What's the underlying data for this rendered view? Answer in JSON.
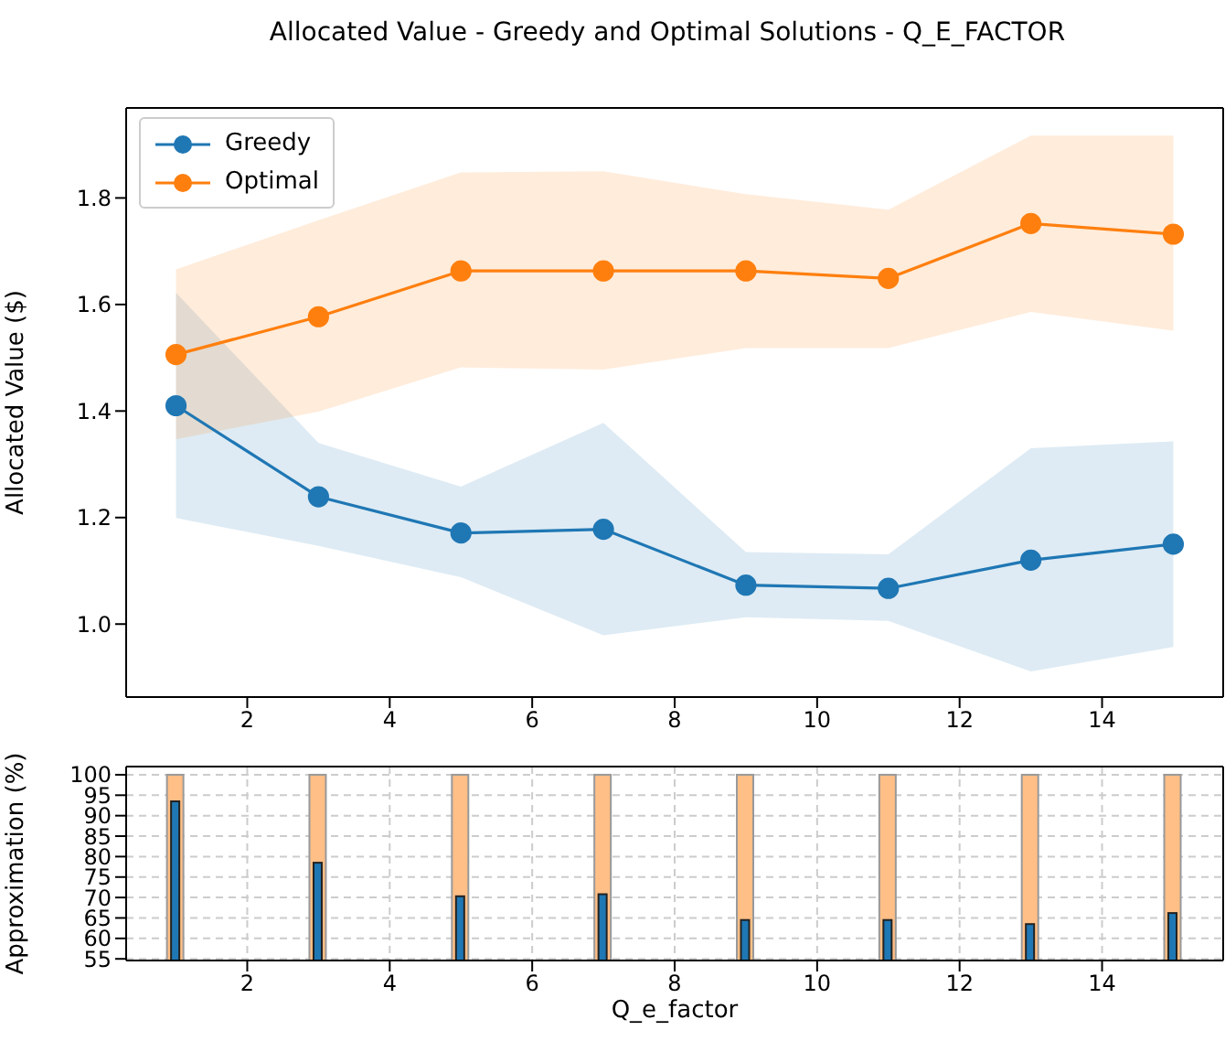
{
  "chart_data": [
    {
      "type": "line",
      "title": "Allocated Value - Greedy and Optimal Solutions - Q_E_FACTOR",
      "ylabel": "Allocated Value ($)",
      "x": [
        1,
        3,
        5,
        7,
        9,
        11,
        13,
        15
      ],
      "series": [
        {
          "name": "Greedy",
          "color": "#1f77b4",
          "values": [
            1.41,
            1.239,
            1.171,
            1.178,
            1.073,
            1.067,
            1.12,
            1.15
          ],
          "lower": [
            1.199,
            1.147,
            1.088,
            0.979,
            1.013,
            1.006,
            0.911,
            0.957
          ],
          "upper": [
            1.622,
            1.34,
            1.258,
            1.378,
            1.135,
            1.131,
            1.33,
            1.343
          ]
        },
        {
          "name": "Optimal",
          "color": "#ff7f0e",
          "values": [
            1.506,
            1.577,
            1.663,
            1.663,
            1.663,
            1.649,
            1.752,
            1.732
          ],
          "lower": [
            1.347,
            1.399,
            1.482,
            1.478,
            1.518,
            1.518,
            1.586,
            1.551
          ],
          "upper": [
            1.666,
            1.758,
            1.848,
            1.85,
            1.807,
            1.778,
            1.917,
            1.917
          ]
        }
      ],
      "xlim": [
        0.3,
        15.7
      ],
      "xticks": [
        2,
        4,
        6,
        8,
        10,
        12,
        14
      ],
      "ylim": [
        0.863,
        1.969
      ],
      "yticks": [
        {
          "value": 1.0,
          "label": "1.0"
        },
        {
          "value": 1.2,
          "label": "1.2"
        },
        {
          "value": 1.4,
          "label": "1.4"
        },
        {
          "value": 1.6,
          "label": "1.6"
        },
        {
          "value": 1.8,
          "label": "1.8"
        }
      ],
      "legend": "top left",
      "marker": "circle",
      "grid": false
    },
    {
      "type": "bar",
      "xlabel": "Q_e_factor",
      "ylabel": "Approximation (%)",
      "x": [
        1,
        3,
        5,
        7,
        9,
        11,
        13,
        15
      ],
      "series": [
        {
          "color": "#ffbf86",
          "values": [
            100,
            100,
            100,
            100,
            100,
            100,
            100,
            100
          ]
        },
        {
          "color": "#1f77b4",
          "values": [
            93.5,
            78.5,
            70.3,
            70.8,
            64.5,
            64.5,
            63.5,
            66.2
          ]
        }
      ],
      "xlim": [
        0.3,
        15.7
      ],
      "xticks": [
        2,
        4,
        6,
        8,
        10,
        12,
        14
      ],
      "ylim": [
        54.6,
        102
      ],
      "yticks": [
        55,
        60,
        65,
        70,
        75,
        80,
        85,
        90,
        95,
        100
      ],
      "grid": true
    }
  ]
}
